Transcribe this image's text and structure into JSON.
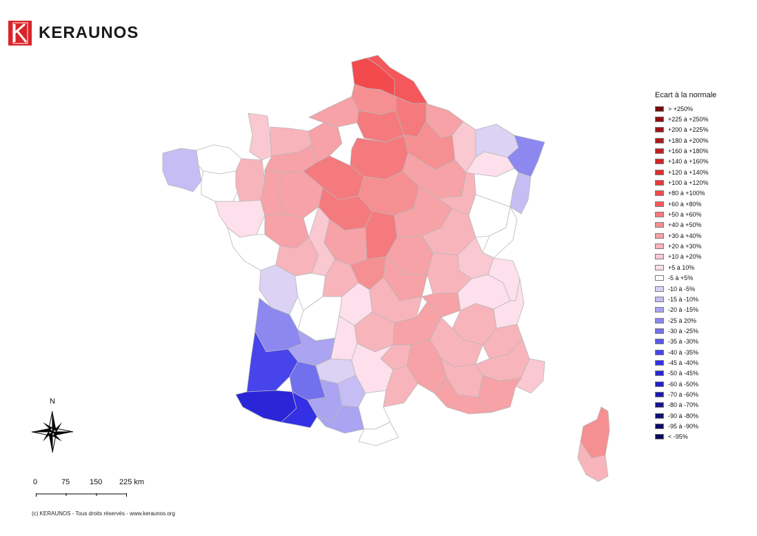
{
  "brand": {
    "name": "KERAUNOS",
    "logo_color": "#d9252a"
  },
  "legend": {
    "title": "Ecart à la normale",
    "items": [
      {
        "label": "> +250%",
        "color": "#7a0a0a"
      },
      {
        "label": "+225 à +250%",
        "color": "#8e0f10"
      },
      {
        "label": "+200 à +225%",
        "color": "#9e1416"
      },
      {
        "label": "+180 à +200%",
        "color": "#ae1a1c"
      },
      {
        "label": "+160 à +180%",
        "color": "#bf2022"
      },
      {
        "label": "+140 à +160%",
        "color": "#cd2628"
      },
      {
        "label": "+120 à +140%",
        "color": "#da2e30"
      },
      {
        "label": "+100 à +120%",
        "color": "#e63a3c"
      },
      {
        "label": "+80 à +100%",
        "color": "#f24a4d"
      },
      {
        "label": "+60 à +80%",
        "color": "#f5585b"
      },
      {
        "label": "+50 à +60%",
        "color": "#f57a7d"
      },
      {
        "label": "+40 à +50%",
        "color": "#f58f91"
      },
      {
        "label": "+30 à +40%",
        "color": "#f6a2a6"
      },
      {
        "label": "+20 à +30%",
        "color": "#f8b4bb"
      },
      {
        "label": "+10 à +20%",
        "color": "#fac8d1"
      },
      {
        "label": "+5 à 10%",
        "color": "#fde0ec"
      },
      {
        "label": "-5 à +5%",
        "color": "#ffffff"
      },
      {
        "label": "-10 à -5%",
        "color": "#dcd2f4"
      },
      {
        "label": "-15 à -10%",
        "color": "#c6bdf4"
      },
      {
        "label": "-20 à -15%",
        "color": "#aaa4f2"
      },
      {
        "label": "-25 à 20%",
        "color": "#8c88f0"
      },
      {
        "label": "-30 à -25%",
        "color": "#7370ee"
      },
      {
        "label": "-35 à -30%",
        "color": "#5a58ec"
      },
      {
        "label": "-40 à -35%",
        "color": "#4644ea"
      },
      {
        "label": "-45 à -40%",
        "color": "#3430e6"
      },
      {
        "label": "-50 à -45%",
        "color": "#2a26d8"
      },
      {
        "label": "-60 à -50%",
        "color": "#2320c4"
      },
      {
        "label": "-70 à -60%",
        "color": "#1d1aaa"
      },
      {
        "label": "-80 à -70%",
        "color": "#171490"
      },
      {
        "label": "-90 à -80%",
        "color": "#120f78"
      },
      {
        "label": "-95 à -90%",
        "color": "#0e0b66"
      },
      {
        "label": "< -95%",
        "color": "#0a0858"
      }
    ]
  },
  "compass": {
    "north_label": "N"
  },
  "scale": {
    "ticks": [
      "0",
      "75",
      "150",
      "225 km"
    ]
  },
  "footer": {
    "text": "(c) KERAUNOS - Tous droits réservés - www.keraunos.org"
  }
}
